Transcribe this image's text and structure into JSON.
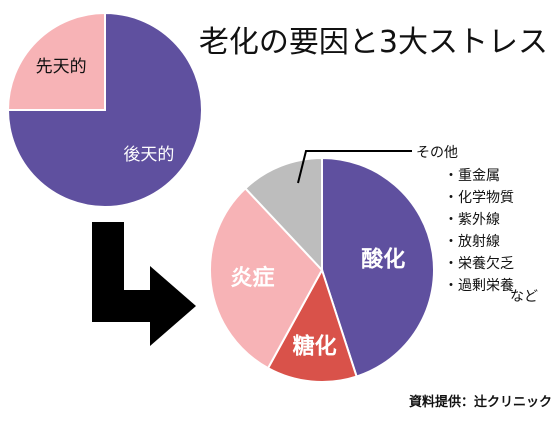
{
  "title": "老化の要因と3大ストレス",
  "credit": "資料提供：辻クリニック",
  "colors": {
    "purple": "#5f509f",
    "pink": "#f7b3b6",
    "red": "#d9524a",
    "gray": "#bdbdbd",
    "arrow": "#000000"
  },
  "chart_data": [
    {
      "type": "pie",
      "title": "",
      "slices": [
        {
          "label": "後天的",
          "value": 75,
          "color": "#5f509f"
        },
        {
          "label": "先天的",
          "value": 25,
          "color": "#f7b3b6"
        }
      ]
    },
    {
      "type": "pie",
      "title": "",
      "slices": [
        {
          "label": "酸化",
          "value": 45,
          "color": "#5f509f"
        },
        {
          "label": "糖化",
          "value": 13,
          "color": "#d9524a"
        },
        {
          "label": "炎症",
          "value": 30,
          "color": "#f7b3b6"
        },
        {
          "label": "その他",
          "value": 12,
          "color": "#bdbdbd"
        }
      ]
    }
  ],
  "other_list": {
    "header": "その他",
    "items": [
      "・重金属",
      "・化学物質",
      "・紫外線",
      "・放射線",
      "・栄養欠乏",
      "・過剰栄養"
    ],
    "footer": "など"
  }
}
